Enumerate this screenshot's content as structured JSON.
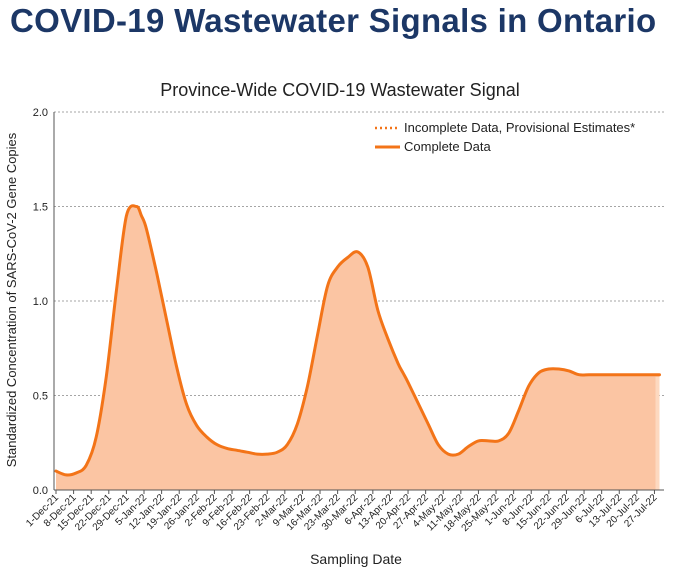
{
  "page": {
    "title": "COVID-19 Wastewater Signals in Ontario"
  },
  "colors": {
    "title": "#1c3766",
    "line": "#f37418",
    "fill": "#fbc5a3",
    "fill_tail": "#fdd9c0",
    "grid": "#888888"
  },
  "chart_data": {
    "type": "area",
    "title": "Province-Wide COVID-19 Wastewater Signal",
    "xlabel": "Sampling Date",
    "ylabel": "Standardized Concentration of SARS-CoV-2 Gene Copies",
    "ylim": [
      0,
      2.0
    ],
    "yticks": [
      "0.0",
      "0.5",
      "1.0",
      "1.5",
      "2.0"
    ],
    "ytick_values": [
      0,
      0.5,
      1.0,
      1.5,
      2.0
    ],
    "xlim": [
      0,
      241
    ],
    "grid": "horizontal",
    "legend_position": "top-right",
    "legend": [
      {
        "label": "Incomplete Data, Provisional Estimates*",
        "style": "dotted"
      },
      {
        "label": "Complete Data",
        "style": "solid"
      }
    ],
    "categories": [
      "1-Dec-21",
      "8-Dec-21",
      "15-Dec-21",
      "22-Dec-21",
      "29-Dec-21",
      "5-Jan-22",
      "12-Jan-22",
      "19-Jan-22",
      "26-Jan-22",
      "2-Feb-22",
      "9-Feb-22",
      "16-Feb-22",
      "23-Feb-22",
      "2-Mar-22",
      "9-Mar-22",
      "16-Mar-22",
      "23-Mar-22",
      "30-Mar-22",
      "6-Apr-22",
      "13-Apr-22",
      "20-Apr-22",
      "27-Apr-22",
      "4-May-22",
      "11-May-22",
      "18-May-22",
      "25-May-22",
      "1-Jun-22",
      "8-Jun-22",
      "15-Jun-22",
      "22-Jun-22",
      "29-Jun-22",
      "6-Jul-22",
      "13-Jul-22",
      "20-Jul-22",
      "27-Jul-22"
    ],
    "x_day": [
      0,
      7,
      14,
      21,
      28,
      35,
      42,
      49,
      56,
      63,
      70,
      77,
      84,
      91,
      98,
      105,
      112,
      119,
      126,
      133,
      140,
      147,
      154,
      161,
      168,
      175,
      182,
      189,
      196,
      203,
      210,
      217,
      224,
      231,
      238
    ],
    "series": [
      {
        "name": "Complete Data",
        "x": [
          0,
          4,
          8,
          12,
          16,
          20,
          24,
          28,
          32,
          34,
          36,
          40,
          44,
          48,
          52,
          56,
          60,
          64,
          68,
          72,
          76,
          80,
          84,
          88,
          92,
          96,
          100,
          104,
          108,
          112,
          116,
          120,
          124,
          128,
          132,
          136,
          138,
          140,
          144,
          148,
          152,
          156,
          160,
          164,
          168,
          172,
          176,
          180,
          184,
          188,
          192,
          196,
          200,
          204,
          208,
          212,
          216,
          220,
          224,
          228,
          232,
          236,
          240
        ],
        "values": [
          0.1,
          0.08,
          0.09,
          0.13,
          0.28,
          0.6,
          1.05,
          1.45,
          1.5,
          1.45,
          1.38,
          1.15,
          0.9,
          0.65,
          0.45,
          0.34,
          0.28,
          0.24,
          0.22,
          0.21,
          0.2,
          0.19,
          0.19,
          0.2,
          0.24,
          0.35,
          0.55,
          0.82,
          1.08,
          1.18,
          1.23,
          1.26,
          1.18,
          0.95,
          0.8,
          0.67,
          0.62,
          0.57,
          0.46,
          0.35,
          0.24,
          0.19,
          0.19,
          0.23,
          0.26,
          0.26,
          0.26,
          0.3,
          0.42,
          0.55,
          0.62,
          0.64,
          0.64,
          0.63,
          0.61,
          0.61,
          0.61,
          0.61,
          0.61,
          0.61,
          0.61,
          0.61,
          0.61
        ]
      }
    ]
  }
}
